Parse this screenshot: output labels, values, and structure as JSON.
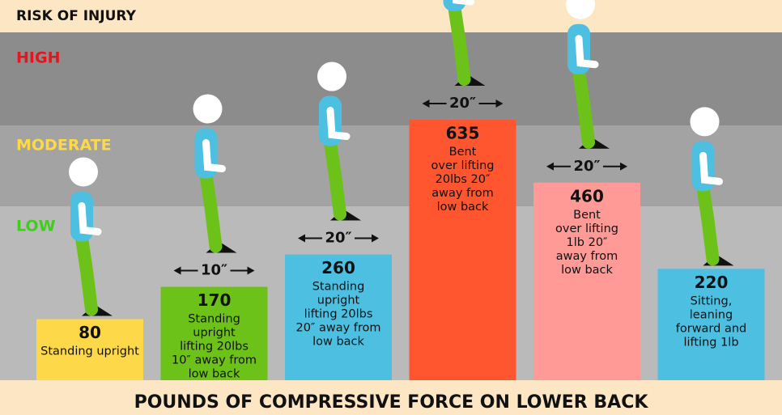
{
  "risk_label": "RISK OF INJURY",
  "zones": [
    {
      "name": "HIGH",
      "color": "#e3161c"
    },
    {
      "name": "MODERATE",
      "color": "#fdd94a"
    },
    {
      "name": "LOW",
      "color": "#3fcf1a"
    }
  ],
  "chart_data": {
    "type": "bar",
    "x_label": "POUNDS OF COMPRESSIVE FORCE ON LOWER BACK",
    "categories": [
      "Standing upright",
      "Standing\nupright\nlifting 20lbs\n10″ away from\nlow back",
      "Standing\nupright\nlifting 20lbs\n20″ away from\nlow back",
      "Bent\nover lifting\n20lbs 20″\naway from\nlow back",
      "Bent\nover lifting\n1lb 20″\naway from\nlow back",
      "Sitting,\nleaning\nforward and\nlifting 1lb"
    ],
    "values": [
      80,
      170,
      260,
      635,
      460,
      220
    ],
    "distance_labels": [
      null,
      "10″",
      "20″",
      "20″",
      "20″",
      null
    ],
    "colors": [
      "#fdd94a",
      "#6dc21a",
      "#4dbfe0",
      "#ff5630",
      "#ff9a96",
      "#4dbfe0"
    ]
  }
}
